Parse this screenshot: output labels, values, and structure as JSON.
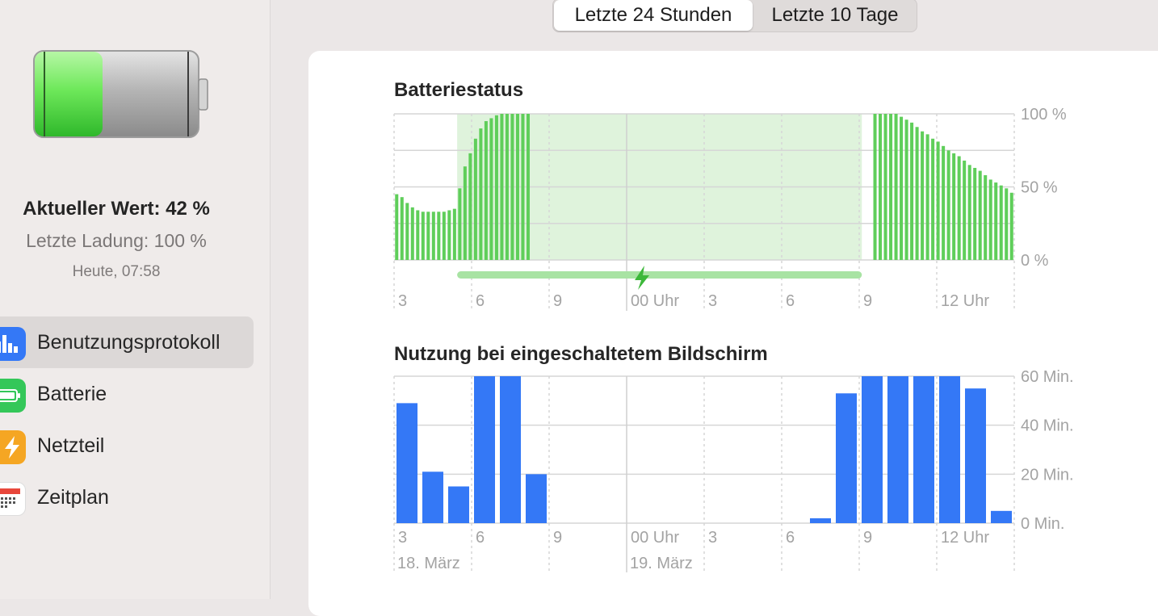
{
  "sidebar": {
    "current_value": "Aktueller Wert: 42 %",
    "last_charge": "Letzte Ladung: 100 %",
    "last_charge_time": "Heute, 07:58",
    "battery_level": 0.42,
    "items": [
      {
        "label": "Benutzungsprotokoll",
        "icon": "bar-chart-icon",
        "color": "#3478f6",
        "selected": true
      },
      {
        "label": "Batterie",
        "icon": "battery-icon",
        "color": "#34c759",
        "selected": false
      },
      {
        "label": "Netzteil",
        "icon": "bolt-icon",
        "color": "#f5a623",
        "selected": false
      },
      {
        "label": "Zeitplan",
        "icon": "calendar-icon",
        "color": "#ffffff",
        "selected": false
      }
    ]
  },
  "segment": {
    "options": [
      "Letzte 24 Stunden",
      "Letzte 10 Tage"
    ],
    "selected": 0
  },
  "battery_chart_title": "Batteriestatus",
  "screen_chart_title": "Nutzung bei eingeschaltetem Bildschirm",
  "colors": {
    "battery_bar": "#5fce5a",
    "charging_band": "#dff3dc",
    "charging_line": "#a8e3a3",
    "screen_bar": "#3478f6",
    "grid": "#d6d6d6",
    "tick_label": "#a3a3a3"
  },
  "chart_data": [
    {
      "type": "bar",
      "title": "Batteriestatus",
      "y_tick_labels": [
        "100 %",
        "50 %",
        "0 %"
      ],
      "x_tick_labels": [
        "3",
        "6",
        "9",
        "00 Uhr",
        "3",
        "6",
        "9",
        "12 Uhr"
      ],
      "ylim": [
        0,
        100
      ],
      "charging_period": {
        "start_bar": 12,
        "end_bar": 89
      },
      "values": [
        45,
        43,
        39,
        36,
        34,
        33,
        33,
        33,
        33,
        33,
        34,
        35,
        49,
        64,
        73,
        83,
        90,
        95,
        97,
        99,
        100,
        100,
        100,
        100,
        100,
        100,
        0,
        0,
        0,
        0,
        0,
        0,
        0,
        0,
        0,
        0,
        0,
        0,
        0,
        0,
        0,
        0,
        0,
        0,
        0,
        0,
        0,
        0,
        0,
        0,
        0,
        0,
        0,
        0,
        0,
        0,
        0,
        0,
        0,
        0,
        0,
        0,
        0,
        0,
        0,
        0,
        0,
        0,
        0,
        0,
        0,
        0,
        0,
        0,
        0,
        0,
        0,
        0,
        0,
        0,
        0,
        0,
        0,
        0,
        0,
        0,
        0,
        0,
        0,
        0,
        0,
        100,
        100,
        100,
        100,
        100,
        98,
        96,
        94,
        91,
        88,
        86,
        83,
        81,
        78,
        75,
        73,
        71,
        68,
        65,
        63,
        61,
        58,
        55,
        53,
        51,
        49,
        46
      ]
    },
    {
      "type": "bar",
      "title": "Nutzung bei eingeschaltetem Bildschirm",
      "y_tick_labels": [
        "60 Min.",
        "40 Min.",
        "20 Min.",
        "0 Min."
      ],
      "x_tick_labels": [
        "3",
        "6",
        "9",
        "00 Uhr",
        "3",
        "6",
        "9",
        "12 Uhr"
      ],
      "date_labels": [
        "18. März",
        "19. März"
      ],
      "ylim": [
        0,
        60
      ],
      "unit": "Min.",
      "values": [
        49,
        21,
        15,
        60,
        60,
        20,
        0,
        0,
        0,
        0,
        0,
        0,
        0,
        0,
        0,
        0,
        2,
        53,
        60,
        60,
        60,
        60,
        55,
        5
      ]
    }
  ]
}
